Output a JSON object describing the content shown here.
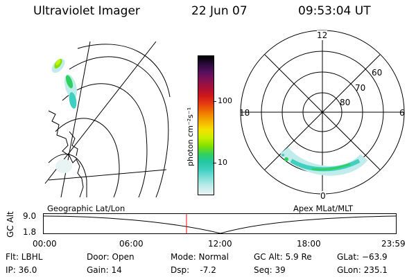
{
  "header": {
    "instrument": "Ultraviolet Imager",
    "date": "22 Jun 07",
    "time": "09:53:04 UT"
  },
  "colorbar": {
    "label": "photon cm⁻²s⁻¹",
    "ticks": [
      "100",
      "10"
    ],
    "colors": [
      "#000000",
      "#2b0a3d",
      "#5a1060",
      "#8a1050",
      "#b01030",
      "#d01818",
      "#e84010",
      "#f07a00",
      "#f5b000",
      "#f7e000",
      "#c8f000",
      "#80e000",
      "#30d060",
      "#20c8a0",
      "#40d0c0",
      "#80e0d8",
      "#c0ecec",
      "#e8f4f4"
    ]
  },
  "left_panel": {
    "caption": "Geographic Lat/Lon"
  },
  "right_panel": {
    "caption": "Apex MLat/MLT",
    "mlt_labels": {
      "top": "12",
      "left": "18",
      "right": "6",
      "bottom": "0"
    },
    "lat_labels": [
      "60",
      "70",
      "80"
    ]
  },
  "timeline": {
    "ylabel": "GC Alt",
    "ytick_top": "9.0",
    "ytick_bottom": "1.8",
    "xticks": [
      "00:00",
      "06:00",
      "12:00",
      "18:00",
      "23:59"
    ],
    "current_marker_color": "#ff0000"
  },
  "meta": {
    "flt": "Flt: LBHL",
    "ip": "IP: 36.0",
    "door": "Door: Open",
    "gain": "Gain: 14",
    "mode": "Mode: Normal",
    "dsp": "Dsp:    -7.2",
    "gcalt": "GC Alt: 5.9 Re",
    "seq": "Seq: 39",
    "glat": "GLat: −63.9",
    "glon": "GLon: 235.1"
  }
}
